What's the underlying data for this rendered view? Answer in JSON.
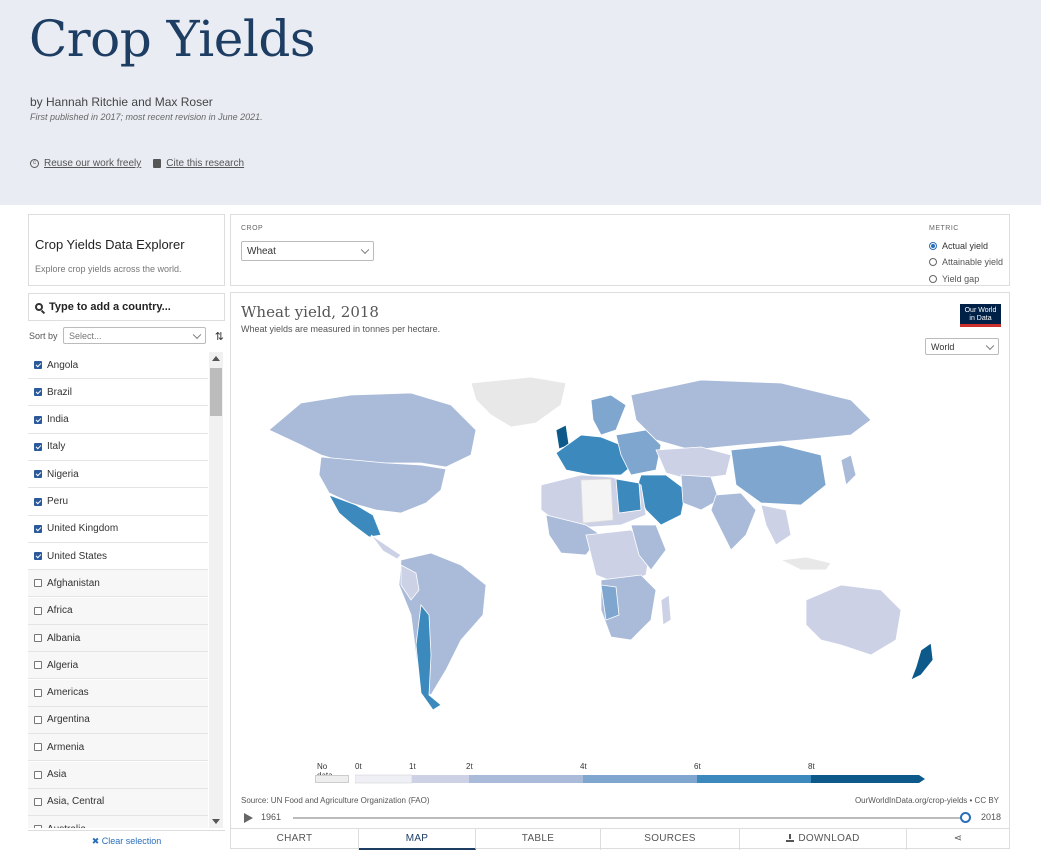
{
  "header": {
    "title": "Crop Yields",
    "byline": "by Hannah Ritchie and Max Roser",
    "published": "First published in 2017; most recent revision in June 2021.",
    "links": [
      {
        "label": "Reuse our work freely",
        "icon": "cc-icon"
      },
      {
        "label": "Cite this research",
        "icon": "book-icon"
      }
    ]
  },
  "explorer": {
    "title": "Crop Yields Data Explorer",
    "subtitle": "Explore crop yields across the world."
  },
  "controls": {
    "crop_label": "CROP",
    "crop_value": "Wheat",
    "metric_label": "METRIC",
    "metrics": [
      {
        "label": "Actual yield",
        "selected": true
      },
      {
        "label": "Attainable yield",
        "selected": false
      },
      {
        "label": "Yield gap",
        "selected": false
      }
    ]
  },
  "countries": {
    "search_placeholder": "Type to add a country...",
    "sort_label": "Sort by",
    "sort_value": "Select...",
    "items": [
      {
        "name": "Angola",
        "checked": true
      },
      {
        "name": "Brazil",
        "checked": true
      },
      {
        "name": "India",
        "checked": true
      },
      {
        "name": "Italy",
        "checked": true
      },
      {
        "name": "Nigeria",
        "checked": true
      },
      {
        "name": "Peru",
        "checked": true
      },
      {
        "name": "United Kingdom",
        "checked": true
      },
      {
        "name": "United States",
        "checked": true
      },
      {
        "name": "Afghanistan",
        "checked": false
      },
      {
        "name": "Africa",
        "checked": false
      },
      {
        "name": "Albania",
        "checked": false
      },
      {
        "name": "Algeria",
        "checked": false
      },
      {
        "name": "Americas",
        "checked": false
      },
      {
        "name": "Argentina",
        "checked": false
      },
      {
        "name": "Armenia",
        "checked": false
      },
      {
        "name": "Asia",
        "checked": false
      },
      {
        "name": "Asia, Central",
        "checked": false
      },
      {
        "name": "Australia",
        "checked": false
      }
    ],
    "clear_label": "Clear selection"
  },
  "chart": {
    "title": "Wheat yield, 2018",
    "subtitle": "Wheat yields are measured in tonnes per hectare.",
    "logo_line1": "Our World",
    "logo_line2": "in Data",
    "region": "World",
    "legend": {
      "no_data": "No data",
      "ticks": [
        "0t",
        "1t",
        "2t",
        "4t",
        "6t",
        "8t"
      ],
      "colors": [
        "#eef0f6",
        "#cdd1e6",
        "#a9bbd9",
        "#7ea6cf",
        "#3b89bd",
        "#0d5a8a"
      ]
    },
    "source": "Source: UN Food and Agriculture Organization (FAO)",
    "credit": "OurWorldInData.org/crop-yields • CC BY",
    "timeline": {
      "start": "1961",
      "end": "2018"
    },
    "tabs": [
      "CHART",
      "MAP",
      "TABLE",
      "SOURCES",
      "DOWNLOAD",
      ""
    ],
    "active_tab": "MAP"
  }
}
